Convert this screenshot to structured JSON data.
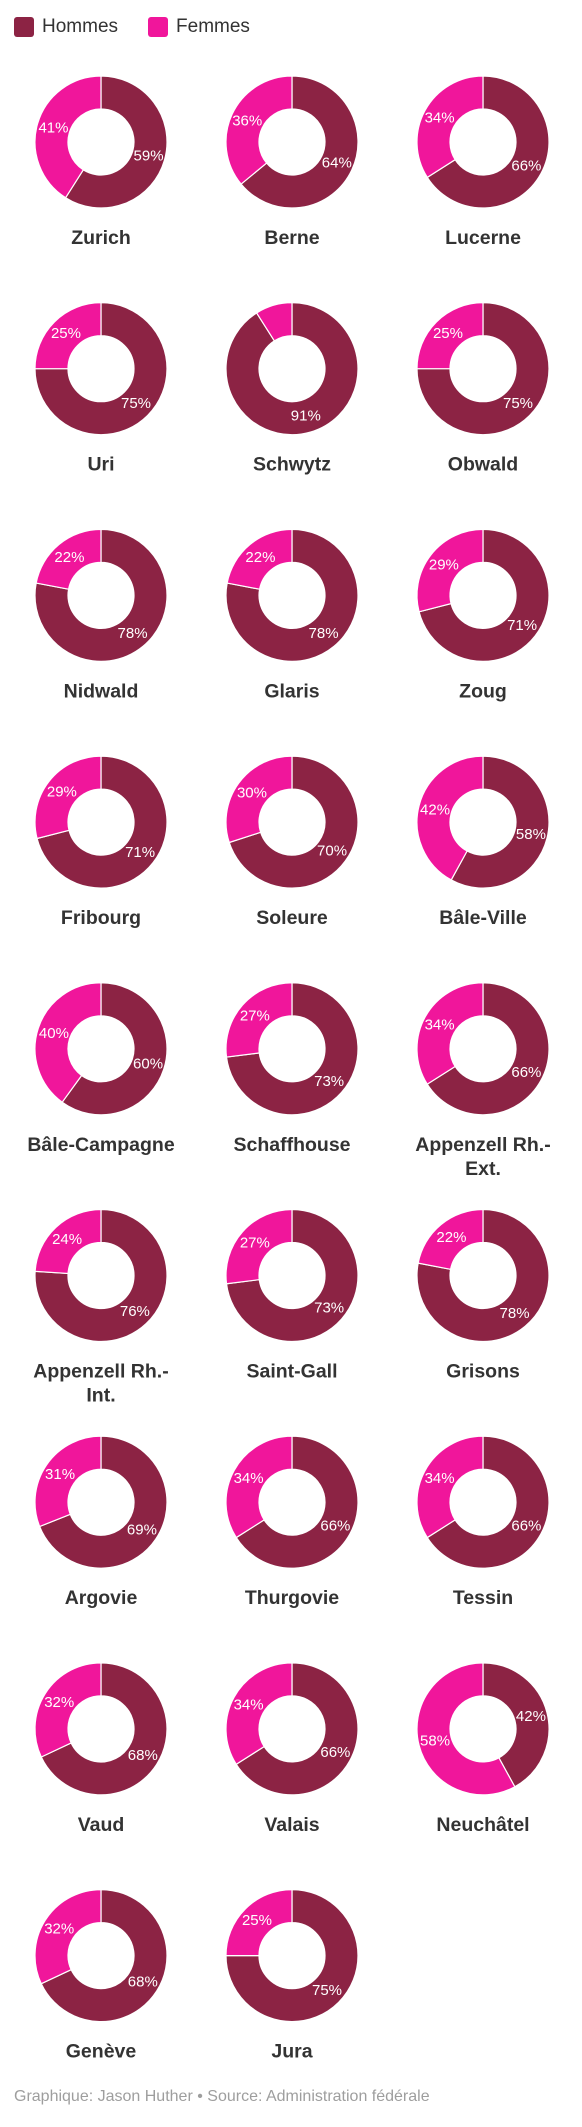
{
  "legend": {
    "items": [
      {
        "label": "Hommes",
        "color": "#8c2344"
      },
      {
        "label": "Femmes",
        "color": "#f0169b"
      }
    ]
  },
  "footer": {
    "text": "Graphique: Jason Huther • Source: Administration fédérale"
  },
  "chart_data": {
    "type": "donut",
    "series_names": [
      "Hommes",
      "Femmes"
    ],
    "colors": {
      "Hommes": "#8c2344",
      "Femmes": "#f0169b"
    },
    "cantons": [
      {
        "name": [
          "Zurich"
        ],
        "hommes": 59,
        "femmes": 41
      },
      {
        "name": [
          "Berne"
        ],
        "hommes": 64,
        "femmes": 36
      },
      {
        "name": [
          "Lucerne"
        ],
        "hommes": 66,
        "femmes": 34
      },
      {
        "name": [
          "Uri"
        ],
        "hommes": 75,
        "femmes": 25
      },
      {
        "name": [
          "Schwytz"
        ],
        "hommes": 91,
        "femmes": 9
      },
      {
        "name": [
          "Obwald"
        ],
        "hommes": 75,
        "femmes": 25
      },
      {
        "name": [
          "Nidwald"
        ],
        "hommes": 78,
        "femmes": 22
      },
      {
        "name": [
          "Glaris"
        ],
        "hommes": 78,
        "femmes": 22
      },
      {
        "name": [
          "Zoug"
        ],
        "hommes": 71,
        "femmes": 29
      },
      {
        "name": [
          "Fribourg"
        ],
        "hommes": 71,
        "femmes": 29
      },
      {
        "name": [
          "Soleure"
        ],
        "hommes": 70,
        "femmes": 30
      },
      {
        "name": [
          "Bâle-Ville"
        ],
        "hommes": 58,
        "femmes": 42
      },
      {
        "name": [
          "Bâle-Campagne"
        ],
        "hommes": 60,
        "femmes": 40
      },
      {
        "name": [
          "Schaffhouse"
        ],
        "hommes": 73,
        "femmes": 27
      },
      {
        "name": [
          "Appenzell Rh.-",
          "Ext."
        ],
        "hommes": 66,
        "femmes": 34
      },
      {
        "name": [
          "Appenzell Rh.-",
          "Int."
        ],
        "hommes": 76,
        "femmes": 24
      },
      {
        "name": [
          "Saint-Gall"
        ],
        "hommes": 73,
        "femmes": 27
      },
      {
        "name": [
          "Grisons"
        ],
        "hommes": 78,
        "femmes": 22
      },
      {
        "name": [
          "Argovie"
        ],
        "hommes": 69,
        "femmes": 31
      },
      {
        "name": [
          "Thurgovie"
        ],
        "hommes": 66,
        "femmes": 34
      },
      {
        "name": [
          "Tessin"
        ],
        "hommes": 66,
        "femmes": 34
      },
      {
        "name": [
          "Vaud"
        ],
        "hommes": 68,
        "femmes": 32
      },
      {
        "name": [
          "Valais"
        ],
        "hommes": 66,
        "femmes": 34
      },
      {
        "name": [
          "Neuchâtel"
        ],
        "hommes": 42,
        "femmes": 58
      },
      {
        "name": [
          "Genève"
        ],
        "hommes": 68,
        "femmes": 32
      },
      {
        "name": [
          "Jura"
        ],
        "hommes": 75,
        "femmes": 25
      }
    ]
  }
}
